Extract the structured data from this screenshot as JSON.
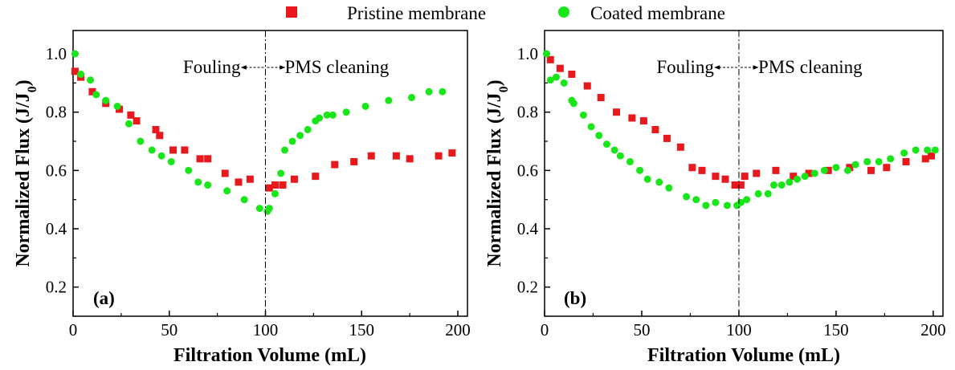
{
  "legend": {
    "items": [
      {
        "label": "Pristine membrane",
        "marker": "square",
        "color": "#e8191c"
      },
      {
        "label": "Coated membrane",
        "marker": "circle",
        "color": "#19e619"
      }
    ]
  },
  "chart_data": [
    {
      "type": "scatter",
      "panel_label": "(a)",
      "xlabel": "Filtration Volume (mL)",
      "ylabel": "Normalized Flux (J/J",
      "ylabel_sub": "0",
      "ylabel_close": ")",
      "xlim": [
        0,
        205
      ],
      "ylim": [
        0.1,
        1.08
      ],
      "x_ticks": [
        0,
        50,
        100,
        150,
        200
      ],
      "y_ticks": [
        0.2,
        0.4,
        0.6,
        0.8,
        1.0
      ],
      "x_tick_labels": [
        "0",
        "50",
        "100",
        "150",
        "200"
      ],
      "y_tick_labels": [
        "0.2",
        "0.4",
        "0.6",
        "0.8",
        "1.0"
      ],
      "divider_x": 100,
      "annotation_left": "Fouling",
      "annotation_right": "PMS cleaning",
      "series": [
        {
          "name": "Pristine membrane",
          "marker": "square",
          "color": "#e8191c",
          "x": [
            1,
            4,
            10,
            17,
            24,
            30,
            33,
            43,
            45,
            52,
            58,
            66,
            70,
            79,
            86,
            92,
            102,
            105,
            109,
            115,
            126,
            136,
            146,
            155,
            168,
            175,
            190,
            197
          ],
          "y": [
            0.94,
            0.92,
            0.87,
            0.83,
            0.81,
            0.79,
            0.77,
            0.74,
            0.72,
            0.67,
            0.67,
            0.64,
            0.64,
            0.59,
            0.56,
            0.57,
            0.54,
            0.55,
            0.55,
            0.57,
            0.58,
            0.62,
            0.63,
            0.65,
            0.65,
            0.64,
            0.65,
            0.66
          ]
        },
        {
          "name": "Coated membrane",
          "marker": "circle",
          "color": "#19e619",
          "x": [
            1,
            4,
            9,
            12,
            17,
            23,
            29,
            35,
            41,
            46,
            51,
            60,
            65,
            70,
            80,
            89,
            97,
            101,
            102,
            105,
            108,
            110,
            114,
            118,
            122,
            126,
            128,
            132,
            135,
            142,
            152,
            164,
            176,
            185,
            192
          ],
          "y": [
            1.0,
            0.93,
            0.91,
            0.86,
            0.84,
            0.82,
            0.76,
            0.7,
            0.67,
            0.65,
            0.63,
            0.6,
            0.56,
            0.55,
            0.53,
            0.5,
            0.47,
            0.46,
            0.47,
            0.52,
            0.59,
            0.67,
            0.7,
            0.72,
            0.74,
            0.77,
            0.78,
            0.79,
            0.79,
            0.8,
            0.82,
            0.84,
            0.85,
            0.87,
            0.87
          ]
        }
      ]
    },
    {
      "type": "scatter",
      "panel_label": "(b)",
      "xlabel": "Filtration Volume (mL)",
      "ylabel": "Normalized Flux (J/J",
      "ylabel_sub": "0",
      "ylabel_close": ")",
      "xlim": [
        0,
        205
      ],
      "ylim": [
        0.1,
        1.08
      ],
      "x_ticks": [
        0,
        50,
        100,
        150,
        200
      ],
      "y_ticks": [
        0.2,
        0.4,
        0.6,
        0.8,
        1.0
      ],
      "x_tick_labels": [
        "0",
        "50",
        "100",
        "150",
        "200"
      ],
      "y_tick_labels": [
        "0.2",
        "0.4",
        "0.6",
        "0.8",
        "1.0"
      ],
      "divider_x": 100,
      "annotation_left": "Fouling",
      "annotation_right": "PMS cleaning",
      "series": [
        {
          "name": "Pristine membrane",
          "marker": "square",
          "color": "#e8191c",
          "x": [
            3,
            8,
            14,
            22,
            29,
            37,
            45,
            51,
            57,
            63,
            70,
            76,
            81,
            88,
            93,
            98,
            101,
            103,
            109,
            119,
            128,
            136,
            146,
            157,
            168,
            176,
            186,
            196,
            199
          ],
          "y": [
            0.98,
            0.95,
            0.93,
            0.89,
            0.85,
            0.8,
            0.78,
            0.77,
            0.74,
            0.71,
            0.68,
            0.61,
            0.6,
            0.58,
            0.57,
            0.55,
            0.55,
            0.58,
            0.59,
            0.6,
            0.58,
            0.59,
            0.6,
            0.61,
            0.6,
            0.61,
            0.63,
            0.64,
            0.65
          ]
        },
        {
          "name": "Coated membrane",
          "marker": "circle",
          "color": "#19e619",
          "x": [
            1,
            3,
            6,
            10,
            14,
            15,
            20,
            24,
            28,
            32,
            36,
            39,
            44,
            49,
            53,
            59,
            64,
            73,
            78,
            83,
            88,
            94,
            99,
            101,
            104,
            110,
            115,
            118,
            122,
            126,
            130,
            134,
            139,
            144,
            150,
            156,
            160,
            166,
            172,
            178,
            185,
            191,
            197,
            201
          ],
          "y": [
            1.0,
            0.91,
            0.92,
            0.9,
            0.84,
            0.83,
            0.79,
            0.75,
            0.72,
            0.69,
            0.67,
            0.65,
            0.63,
            0.6,
            0.57,
            0.56,
            0.54,
            0.51,
            0.5,
            0.48,
            0.49,
            0.48,
            0.48,
            0.49,
            0.5,
            0.52,
            0.52,
            0.55,
            0.55,
            0.56,
            0.57,
            0.58,
            0.59,
            0.6,
            0.61,
            0.6,
            0.62,
            0.63,
            0.63,
            0.64,
            0.66,
            0.67,
            0.67,
            0.67
          ]
        }
      ]
    }
  ]
}
